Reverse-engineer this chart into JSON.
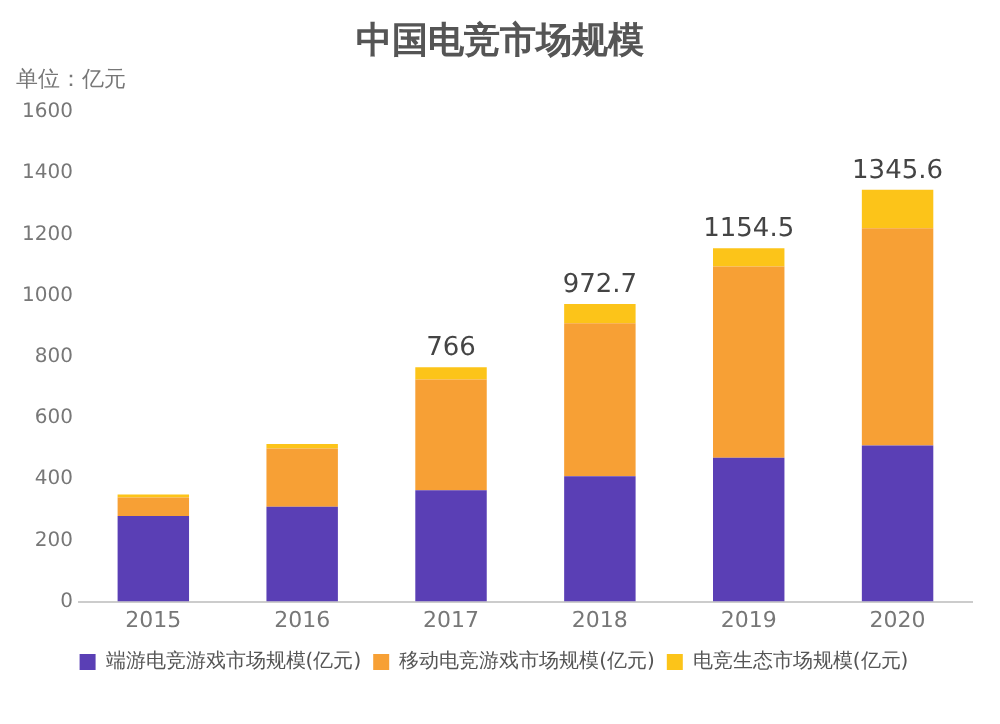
{
  "chart_data": {
    "type": "bar",
    "title": "中国电竞市场规模",
    "ylabel": "单位：亿元",
    "stacked": true,
    "categories": [
      "2015",
      "2016",
      "2017",
      "2018",
      "2019",
      "2020"
    ],
    "series": [
      {
        "name": "端游电竞游戏市场规模(亿元)",
        "color": "#5a3fb5",
        "values": [
          280,
          310,
          364,
          410,
          470,
          510
        ]
      },
      {
        "name": "移动电竞游戏市场规模(亿元)",
        "color": "#f7a035",
        "values": [
          60,
          190,
          362,
          500,
          625,
          710
        ]
      },
      {
        "name": "电竞生态市场规模(亿元)",
        "color": "#fcc419",
        "values": [
          10,
          15,
          40,
          62.7,
          59.5,
          125.6
        ]
      }
    ],
    "totals": [
      null,
      null,
      "766",
      "972.7",
      "1154.5",
      "1345.6"
    ],
    "ylim": [
      0,
      1600
    ],
    "yticks": [
      0,
      200,
      400,
      600,
      800,
      1000,
      1200,
      1400,
      1600
    ],
    "grid": false,
    "legend": "bottom"
  }
}
